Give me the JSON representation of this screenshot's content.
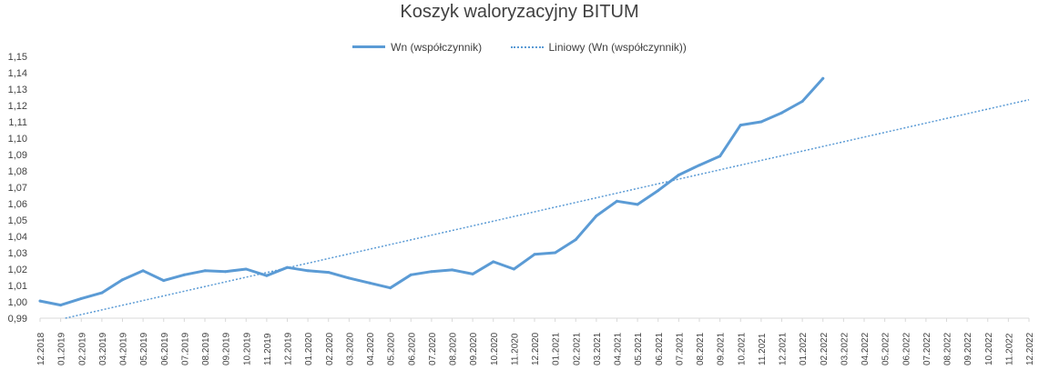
{
  "chart_data": {
    "type": "line",
    "title": "Koszyk waloryzacyjny BITUM",
    "xlabel": "",
    "ylabel": "",
    "ylim": [
      0.99,
      1.15
    ],
    "y_ticks": [
      "0,99",
      "1,00",
      "1,01",
      "1,02",
      "1,03",
      "1,04",
      "1,05",
      "1,06",
      "1,07",
      "1,08",
      "1,09",
      "1,10",
      "1,11",
      "1,12",
      "1,13",
      "1,14",
      "1,15"
    ],
    "categories": [
      "12.2018",
      "01.2019",
      "02.2019",
      "03.2019",
      "04.2019",
      "05.2019",
      "06.2019",
      "07.2019",
      "08.2019",
      "09.2019",
      "10.2019",
      "11.2019",
      "12.2019",
      "01.2020",
      "02.2020",
      "03.2020",
      "04.2020",
      "05.2020",
      "06.2020",
      "07.2020",
      "08.2020",
      "09.2020",
      "10.2020",
      "11.2020",
      "12.2020",
      "01.2021",
      "02.2021",
      "03.2021",
      "04.2021",
      "05.2021",
      "06.2021",
      "07.2021",
      "08.2021",
      "09.2021",
      "10.2021",
      "11.2021",
      "12.2021",
      "01.2022",
      "02.2022",
      "03.2022",
      "04.2022",
      "05.2022",
      "06.2022",
      "07.2022",
      "08.2022",
      "09.2022",
      "10.2022",
      "11.2022",
      "12.2022"
    ],
    "series": [
      {
        "name": "Wn (współczynnik)",
        "style": "solid",
        "color": "#5b9bd5",
        "values": [
          1.0005,
          0.998,
          1.002,
          1.0055,
          1.0135,
          1.019,
          1.013,
          1.0165,
          1.019,
          1.0185,
          1.02,
          1.016,
          1.021,
          1.019,
          1.018,
          1.0145,
          1.0115,
          1.0085,
          1.0165,
          1.0185,
          1.0195,
          1.017,
          1.0245,
          1.02,
          1.029,
          1.03,
          1.038,
          1.0525,
          1.0615,
          1.0595,
          1.068,
          1.0775,
          1.0835,
          1.089,
          1.108,
          1.11,
          1.1155,
          1.1225,
          1.1365,
          null,
          null,
          null,
          null,
          null,
          null,
          null,
          null,
          null,
          null
        ]
      },
      {
        "name": "Liniowy (Wn (współczynnik))",
        "style": "dotted",
        "color": "#5b9bd5",
        "trend_start": 0.9865,
        "trend_end": 1.1235
      }
    ],
    "grid": false,
    "legend_position": "top"
  }
}
